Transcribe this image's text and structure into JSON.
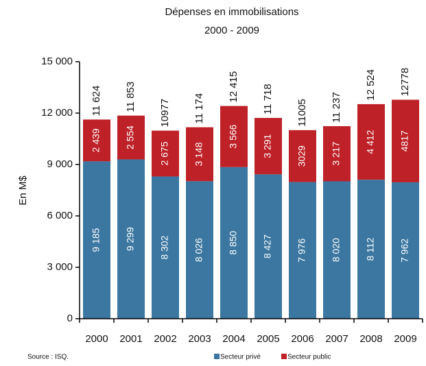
{
  "chart_data": {
    "type": "stacked_bar",
    "title": "Dépenses en immobilisations",
    "subtitle": "2000 - 2009",
    "y_label": "En M$",
    "source": "Source : ISQ.",
    "categories": [
      "2000",
      "2001",
      "2002",
      "2003",
      "2004",
      "2005",
      "2006",
      "2007",
      "2008",
      "2009"
    ],
    "series": [
      {
        "name": "Secteur privé",
        "color": "#3b77a0",
        "values": [
          9185,
          9299,
          8302,
          8026,
          8850,
          8427,
          7976,
          8020,
          8112,
          7962
        ],
        "value_labels": [
          "9 185",
          "9 299",
          "8 302",
          "8 026",
          "8 850",
          "8 427",
          "7 976",
          "8 020",
          "8 112",
          "7 962"
        ]
      },
      {
        "name": "Secteur public",
        "color": "#be2127",
        "values": [
          2439,
          2554,
          2675,
          3148,
          3566,
          3291,
          3029,
          3217,
          4412,
          4817
        ],
        "value_labels": [
          "2 439",
          "2 554",
          "2 675",
          "3 148",
          "3 566",
          "3 291",
          "3029",
          "3 217",
          "4 412",
          "4817"
        ]
      }
    ],
    "totals": [
      11624,
      11853,
      10977,
      11174,
      12415,
      11718,
      11005,
      11237,
      12524,
      12778
    ],
    "total_labels": [
      "11 624",
      "11 853",
      "10977",
      "11 174",
      "12 415",
      "11 718",
      "11005",
      "11 237",
      "12 524",
      "12778"
    ],
    "ylim": [
      0,
      15000
    ],
    "yticks": [
      0,
      {
        "value": 3000,
        "label": "3 000"
      },
      {
        "value": 6000,
        "label": "6 000"
      },
      {
        "value": 9000,
        "label": "9 000"
      },
      {
        "value": 12000,
        "label": "12 000"
      },
      {
        "value": 15000,
        "label": "15 000"
      }
    ]
  }
}
